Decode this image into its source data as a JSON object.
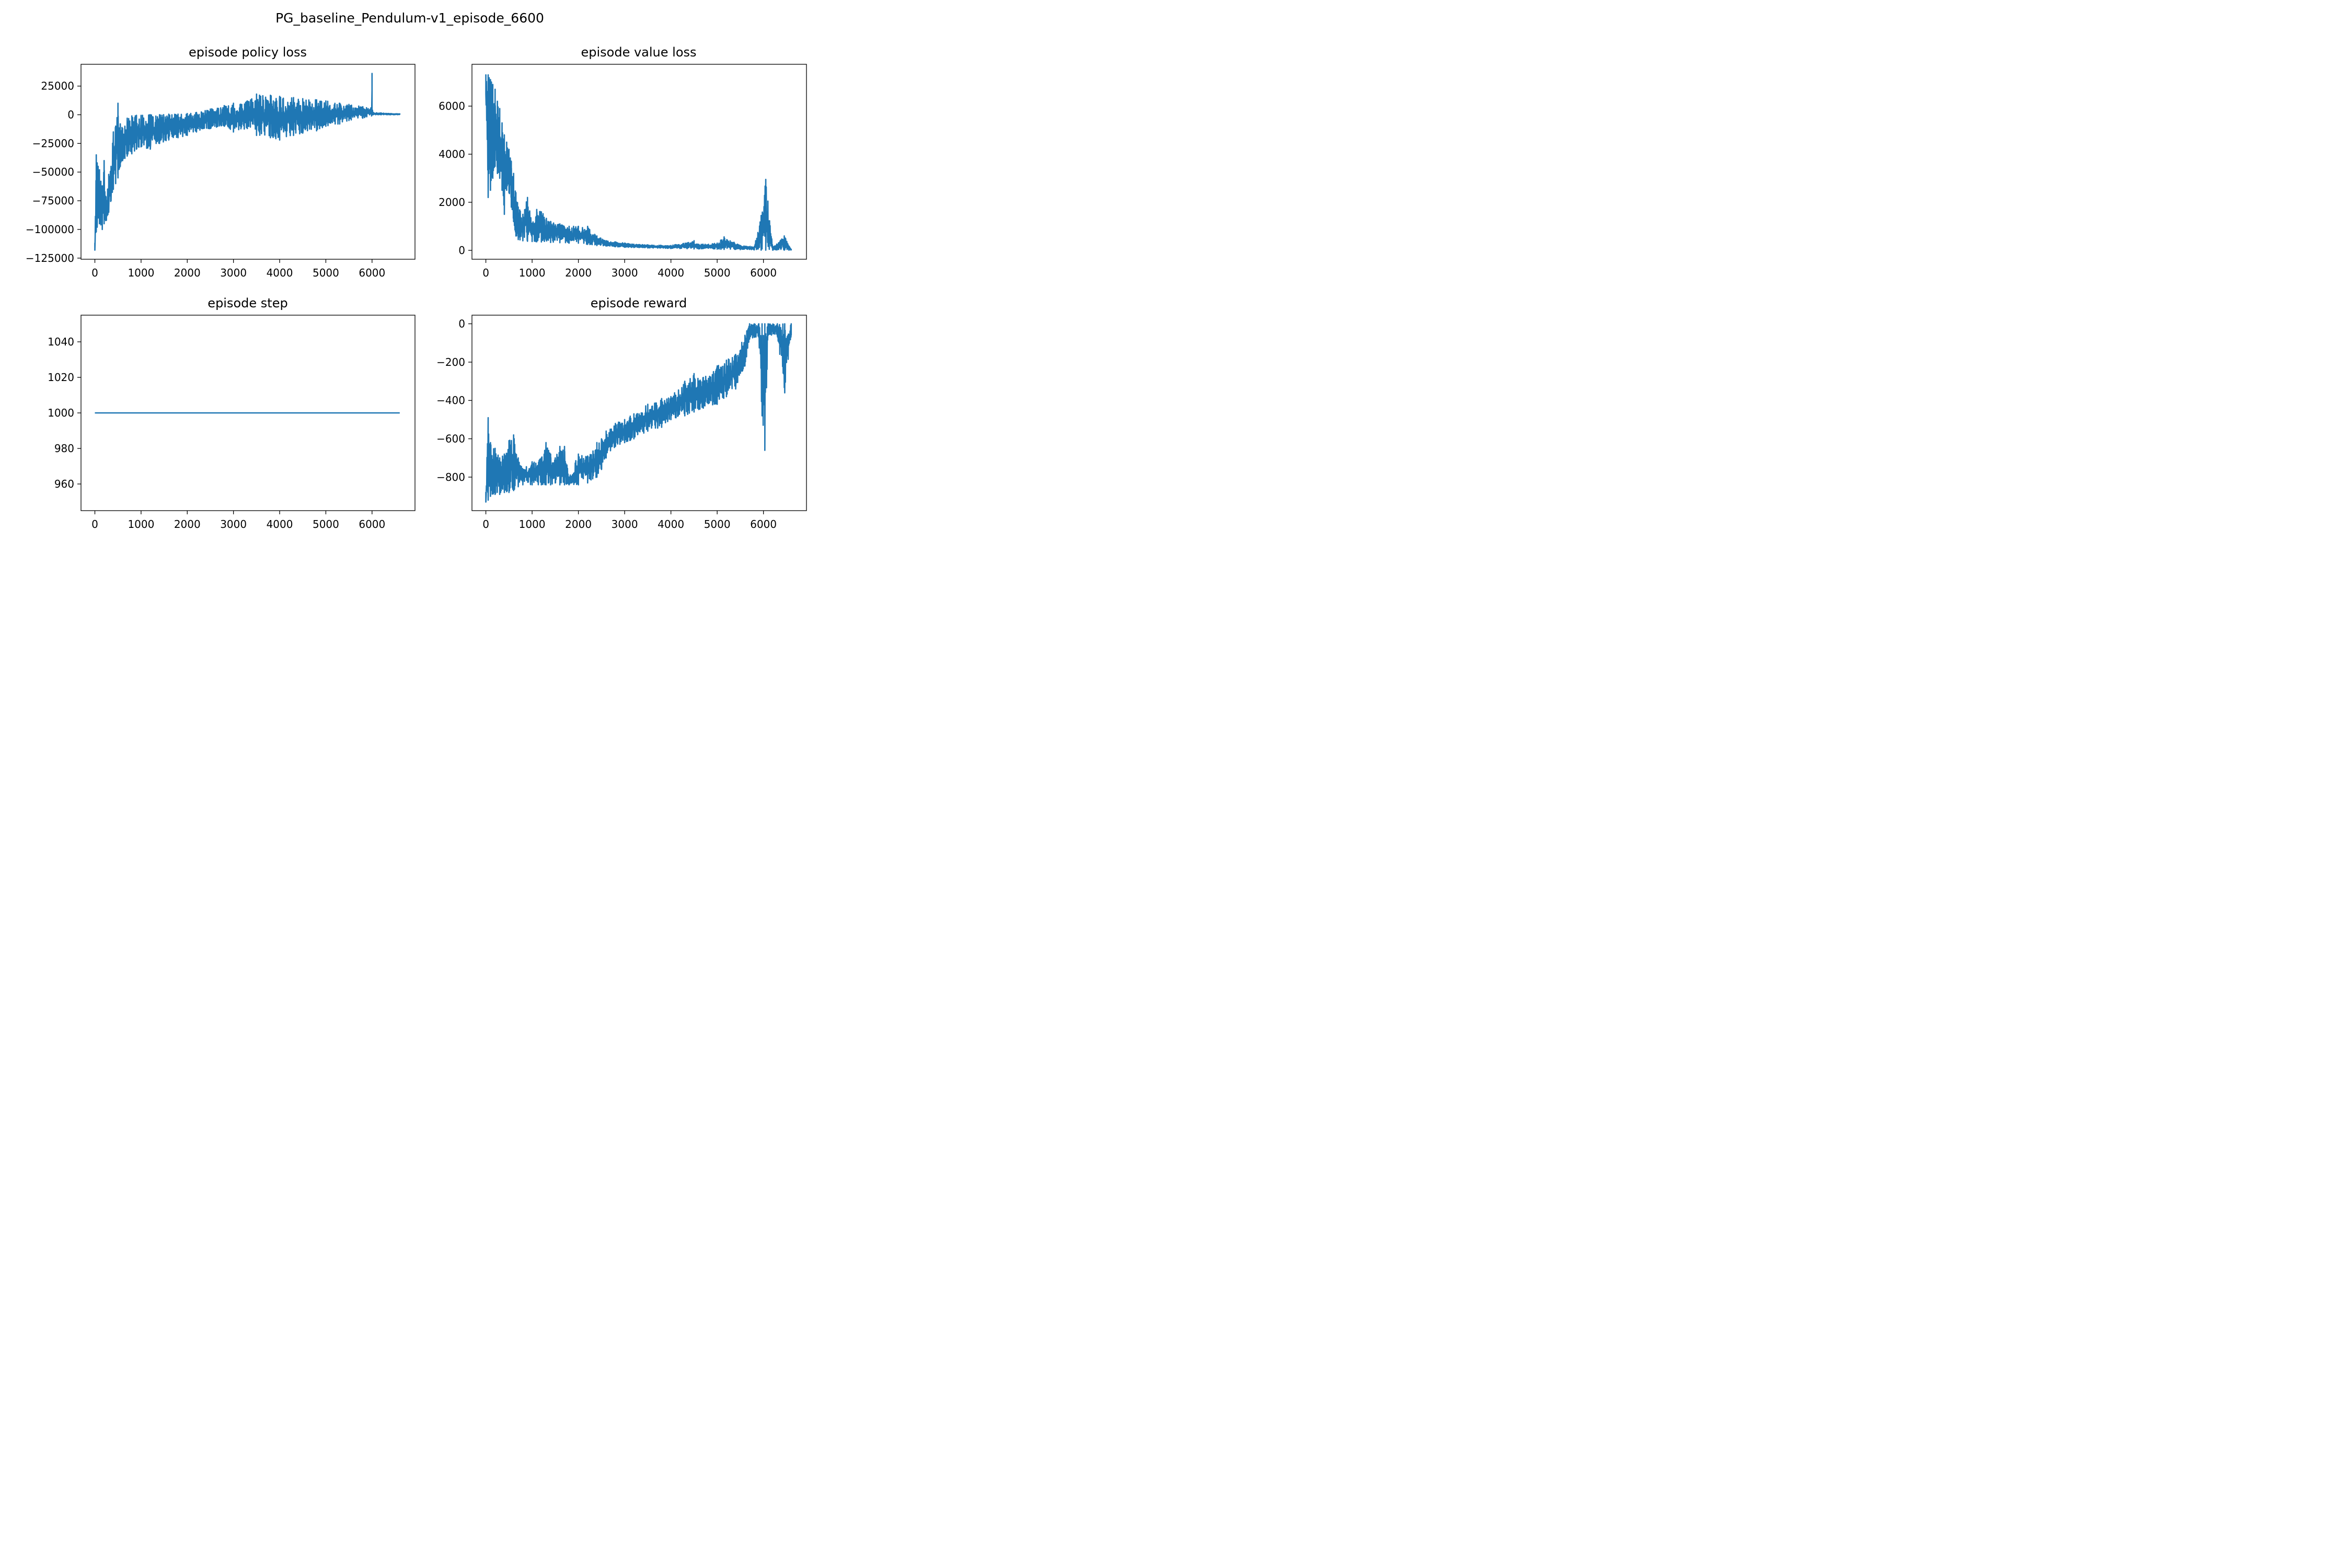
{
  "figure": {
    "suptitle": "PG_baseline_Pendulum-v1_episode_6600",
    "line_color": "#1f77b4"
  },
  "chart_data": [
    {
      "id": "policy",
      "type": "line",
      "title": "episode policy loss",
      "xlabel": "",
      "ylabel": "",
      "xlim": [
        -300,
        6930
      ],
      "ylim": [
        -126000,
        44000
      ],
      "xticks": [
        0,
        1000,
        2000,
        3000,
        4000,
        5000,
        6000
      ],
      "xtick_labels": [
        "0",
        "1000",
        "2000",
        "3000",
        "4000",
        "5000",
        "6000"
      ],
      "yticks": [
        25000,
        0,
        -25000,
        -50000,
        -75000,
        -100000,
        -125000
      ],
      "ytick_labels": [
        "25000",
        "0",
        "−25000",
        "−50000",
        "−75000",
        "−100000",
        "−125000"
      ],
      "grid": false,
      "series": [
        {
          "x": [
            0,
            30,
            50,
            70,
            100,
            130,
            160,
            200,
            250,
            300,
            350,
            400,
            450,
            500,
            550,
            600,
            650,
            700,
            800,
            900,
            1000,
            1200,
            1400,
            1600,
            1800,
            2000,
            2200,
            2500,
            2800,
            3000,
            3300,
            3500,
            3800,
            4000,
            4300,
            4500,
            4800,
            5000,
            5300,
            5500,
            5800,
            5990,
            6000,
            6010,
            6020,
            6200,
            6400,
            6600
          ],
          "upper": [
            -112000,
            -35000,
            -42000,
            -45000,
            -48000,
            -58000,
            -62000,
            -40000,
            -75000,
            -52000,
            -45000,
            -15000,
            -10000,
            10000,
            -8000,
            -12000,
            -10000,
            -3000,
            -1000,
            -500,
            -500,
            0,
            0,
            500,
            500,
            1000,
            2000,
            5000,
            8000,
            10000,
            12000,
            18000,
            17000,
            16000,
            15000,
            14000,
            13000,
            12000,
            10000,
            9000,
            7000,
            6000,
            36000,
            4000,
            2000,
            1500,
            1000,
            800
          ],
          "lower": [
            -118000,
            -102000,
            -98000,
            -90000,
            -95000,
            -96000,
            -100000,
            -95000,
            -92000,
            -85000,
            -75000,
            -65000,
            -60000,
            -55000,
            -45000,
            -40000,
            -38000,
            -36000,
            -34000,
            -30000,
            -28000,
            -30000,
            -25000,
            -22000,
            -20000,
            -18000,
            -15000,
            -12000,
            -10000,
            -15000,
            -12000,
            -18000,
            -20000,
            -22000,
            -18000,
            -16000,
            -14000,
            -10000,
            -8000,
            -5000,
            -3000,
            -1000,
            0,
            0,
            0,
            0,
            0,
            0
          ]
        }
      ]
    },
    {
      "id": "value",
      "type": "line",
      "title": "episode value loss",
      "xlabel": "",
      "ylabel": "",
      "xlim": [
        -300,
        6930
      ],
      "ylim": [
        -370,
        7740
      ],
      "xticks": [
        0,
        1000,
        2000,
        3000,
        4000,
        5000,
        6000
      ],
      "xtick_labels": [
        "0",
        "1000",
        "2000",
        "3000",
        "4000",
        "5000",
        "6000"
      ],
      "yticks": [
        6000,
        4000,
        2000,
        0
      ],
      "ytick_labels": [
        "6000",
        "4000",
        "2000",
        "0"
      ],
      "grid": false,
      "series": [
        {
          "x": [
            0,
            50,
            100,
            150,
            200,
            250,
            300,
            350,
            400,
            450,
            500,
            550,
            600,
            650,
            700,
            800,
            900,
            1000,
            1100,
            1200,
            1400,
            1600,
            1800,
            2000,
            2200,
            2400,
            2600,
            2800,
            3000,
            3200,
            3500,
            4000,
            4500,
            4600,
            5000,
            5150,
            5500,
            5800,
            5950,
            6050,
            6200,
            6450,
            6600
          ],
          "upper": [
            7300,
            7300,
            7100,
            6900,
            6700,
            6200,
            5900,
            5300,
            4800,
            4500,
            4200,
            3700,
            3200,
            2400,
            1800,
            1500,
            2200,
            1100,
            1700,
            1600,
            1200,
            1100,
            1000,
            1000,
            1000,
            600,
            400,
            350,
            300,
            250,
            230,
            200,
            400,
            250,
            300,
            560,
            200,
            150,
            1450,
            2950,
            150,
            600,
            40
          ],
          "lower": [
            6500,
            2200,
            2500,
            3000,
            3500,
            3200,
            3000,
            2500,
            1500,
            2500,
            2400,
            1800,
            1200,
            600,
            450,
            400,
            380,
            370,
            360,
            350,
            330,
            320,
            300,
            300,
            250,
            200,
            180,
            150,
            130,
            120,
            100,
            80,
            60,
            60,
            50,
            40,
            30,
            20,
            10,
            10,
            10,
            10,
            10
          ]
        }
      ]
    },
    {
      "id": "step",
      "type": "line",
      "title": "episode step",
      "xlabel": "",
      "ylabel": "",
      "xlim": [
        -300,
        6930
      ],
      "ylim": [
        945,
        1055
      ],
      "xticks": [
        0,
        1000,
        2000,
        3000,
        4000,
        5000,
        6000
      ],
      "xtick_labels": [
        "0",
        "1000",
        "2000",
        "3000",
        "4000",
        "5000",
        "6000"
      ],
      "yticks": [
        1040,
        1020,
        1000,
        980,
        960
      ],
      "ytick_labels": [
        "1040",
        "1020",
        "1000",
        "980",
        "960"
      ],
      "grid": false,
      "series": [
        {
          "x": [
            0,
            6600
          ],
          "upper": [
            1000,
            1000
          ],
          "lower": [
            1000,
            1000
          ]
        }
      ]
    },
    {
      "id": "reward",
      "type": "line",
      "title": "episode reward",
      "xlabel": "",
      "ylabel": "",
      "xlim": [
        -300,
        6930
      ],
      "ylim": [
        -975,
        45
      ],
      "xticks": [
        0,
        1000,
        2000,
        3000,
        4000,
        5000,
        6000
      ],
      "xtick_labels": [
        "0",
        "1000",
        "2000",
        "3000",
        "4000",
        "5000",
        "6000"
      ],
      "yticks": [
        0,
        -200,
        -400,
        -600,
        -800
      ],
      "ytick_labels": [
        "0",
        "−200",
        "−400",
        "−600",
        "−800"
      ],
      "grid": false,
      "series": [
        {
          "x": [
            0,
            50,
            100,
            200,
            300,
            400,
            500,
            600,
            700,
            800,
            1000,
            1200,
            1300,
            1400,
            1500,
            1600,
            1700,
            1800,
            2000,
            2200,
            2400,
            2500,
            2600,
            2800,
            3000,
            3200,
            3500,
            3800,
            4000,
            4300,
            4500,
            4700,
            5000,
            5200,
            5400,
            5600,
            5700,
            5800,
            5900,
            5970,
            6030,
            6100,
            6300,
            6460,
            6600
          ],
          "upper": [
            -880,
            -490,
            -620,
            -650,
            -700,
            -680,
            -610,
            -580,
            -700,
            -760,
            -720,
            -700,
            -620,
            -680,
            -700,
            -640,
            -640,
            -800,
            -680,
            -690,
            -620,
            -600,
            -560,
            -520,
            -500,
            -470,
            -420,
            -390,
            -380,
            -300,
            -260,
            -280,
            -220,
            -190,
            -160,
            -60,
            0,
            0,
            0,
            0,
            0,
            0,
            0,
            0,
            0
          ],
          "upper_dummy": null,
          "lower": [
            -930,
            -920,
            -900,
            -890,
            -890,
            -880,
            -880,
            -870,
            -850,
            -840,
            -840,
            -840,
            -840,
            -840,
            -830,
            -840,
            -840,
            -840,
            -840,
            -830,
            -800,
            -760,
            -700,
            -640,
            -620,
            -600,
            -560,
            -540,
            -500,
            -480,
            -460,
            -440,
            -420,
            -380,
            -340,
            -220,
            -80,
            -70,
            -70,
            -480,
            -660,
            -60,
            -60,
            -360,
            -60
          ]
        }
      ]
    }
  ]
}
